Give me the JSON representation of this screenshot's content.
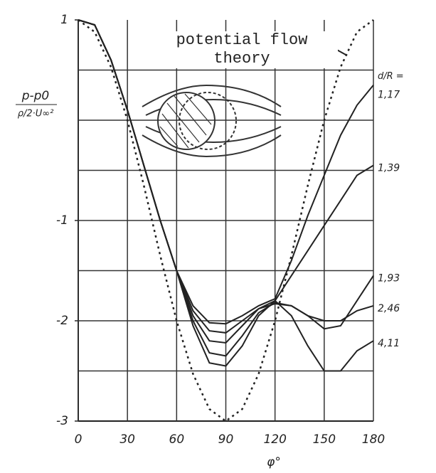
{
  "chart_data": {
    "type": "line",
    "x": [
      0,
      10,
      20,
      30,
      40,
      50,
      60,
      70,
      80,
      90,
      100,
      110,
      120,
      130,
      140,
      150,
      160,
      170,
      180
    ],
    "series": [
      {
        "name": "potential flow theory",
        "color": "#222222",
        "dash": true,
        "values": [
          1,
          0.88,
          0.53,
          0,
          -0.65,
          -1.35,
          -2,
          -2.53,
          -2.88,
          -3,
          -2.88,
          -2.53,
          -2,
          -1.35,
          -0.65,
          0,
          0.53,
          0.88,
          1
        ]
      },
      {
        "name": "1,17",
        "color": "#222222",
        "dash": false,
        "values": [
          1,
          0.95,
          0.6,
          0.1,
          -0.45,
          -1.0,
          -1.5,
          -1.85,
          -2.02,
          -2.03,
          -1.95,
          -1.85,
          -1.78,
          -1.4,
          -0.95,
          -0.55,
          -0.15,
          0.15,
          0.35
        ]
      },
      {
        "name": "1,39",
        "color": "#222222",
        "dash": false,
        "values": [
          1,
          0.95,
          0.6,
          0.1,
          -0.45,
          -1.0,
          -1.5,
          -1.9,
          -2.1,
          -2.12,
          -2.0,
          -1.88,
          -1.8,
          -1.55,
          -1.3,
          -1.05,
          -0.8,
          -0.55,
          -0.45
        ]
      },
      {
        "name": "1,93",
        "color": "#222222",
        "dash": false,
        "values": [
          1,
          0.95,
          0.6,
          0.1,
          -0.45,
          -1.0,
          -1.5,
          -1.95,
          -2.2,
          -2.22,
          -2.05,
          -1.88,
          -1.83,
          -1.85,
          -1.95,
          -2.08,
          -2.05,
          -1.8,
          -1.55
        ]
      },
      {
        "name": "2,46",
        "color": "#222222",
        "dash": false,
        "values": [
          1,
          0.95,
          0.6,
          0.1,
          -0.45,
          -1.0,
          -1.5,
          -2.0,
          -2.32,
          -2.35,
          -2.15,
          -1.92,
          -1.82,
          -1.85,
          -1.95,
          -2.0,
          -2.0,
          -1.9,
          -1.85
        ]
      },
      {
        "name": "4,11",
        "color": "#222222",
        "dash": false,
        "values": [
          1,
          0.95,
          0.6,
          0.1,
          -0.45,
          -1.0,
          -1.5,
          -2.05,
          -2.42,
          -2.45,
          -2.25,
          -1.95,
          -1.8,
          -1.95,
          -2.25,
          -2.5,
          -2.5,
          -2.3,
          -2.2
        ]
      }
    ],
    "ratio_label": "d/R =",
    "ylabel_top": "p-p0",
    "ylabel_bottom": "ρ/2·U∞²",
    "xlabel": "φ°",
    "xlim": [
      0,
      180
    ],
    "ylim": [
      -3,
      1
    ],
    "xticks": [
      0,
      30,
      60,
      90,
      120,
      150,
      180
    ],
    "yticks": [
      1,
      -1,
      -2,
      -3
    ],
    "ygrid": [
      0.5,
      0,
      -0.5,
      -1,
      -1.5,
      -2,
      -2.5
    ],
    "grid": true
  }
}
